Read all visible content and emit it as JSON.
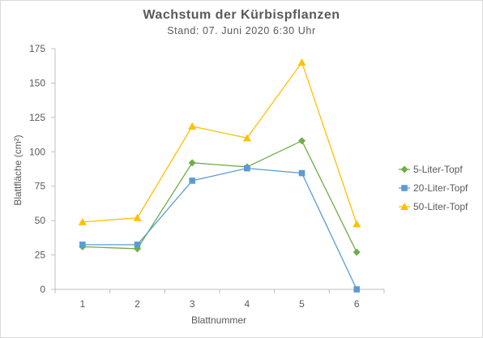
{
  "chart_data": {
    "type": "line",
    "title": "Wachstum der Kürbispflanzen",
    "subtitle": "Stand: 07. Juni 2020 6:30 Uhr",
    "xlabel": "Blattnummer",
    "ylabel": "Blattfläche (cm²)",
    "categories": [
      "1",
      "2",
      "3",
      "4",
      "5",
      "6"
    ],
    "ylim": [
      0,
      175
    ],
    "yticks": [
      "0",
      "25",
      "50",
      "75",
      "100",
      "125",
      "150",
      "175"
    ],
    "grid": false,
    "legend_position": "right",
    "series": [
      {
        "name": "5-Liter-Topf",
        "color": "#70ad47",
        "marker": "diamond",
        "values": [
          31,
          29.5,
          92,
          89,
          108,
          27
        ]
      },
      {
        "name": "20-Liter-Topf",
        "color": "#5b9bd5",
        "marker": "square",
        "values": [
          32.5,
          32.5,
          79,
          88,
          84.5,
          0
        ]
      },
      {
        "name": "50-Liter-Topf",
        "color": "#ffc000",
        "marker": "triangle",
        "values": [
          49,
          52,
          118.5,
          110,
          165,
          47.5
        ]
      }
    ]
  }
}
